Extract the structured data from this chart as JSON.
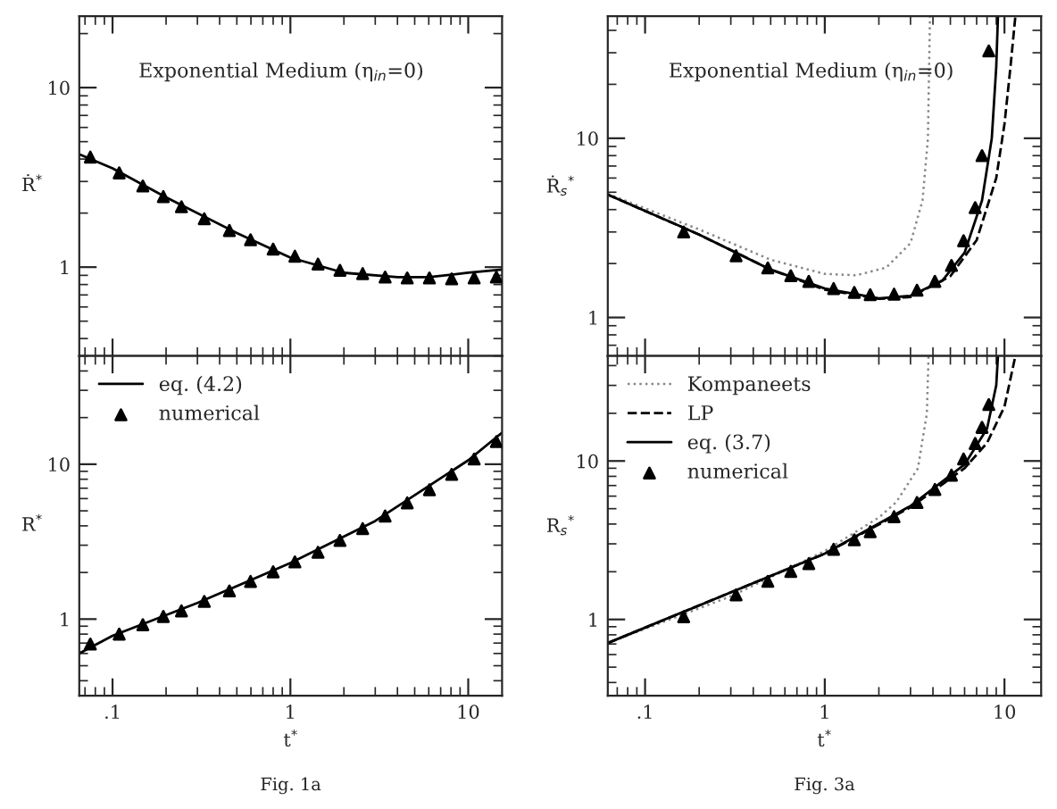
{
  "chart_data": [
    {
      "type": "line",
      "title": "Exponential Medium (η$_{in}$=0)",
      "ylabel": "Ṙ$^{*}$",
      "log": "xy",
      "xlim": [
        0.065,
        15.5
      ],
      "ylim": [
        0.32,
        25
      ],
      "yticks": [
        1,
        10
      ],
      "tick_labels": "y",
      "series": [
        {
          "color": "#000000",
          "line_style": "solid",
          "x": [
            0.065,
            0.1,
            0.2,
            0.5,
            1,
            2,
            4,
            6,
            10,
            15.5
          ],
          "values": [
            4.25,
            3.55,
            2.45,
            1.55,
            1.13,
            0.93,
            0.88,
            0.88,
            0.93,
            0.97
          ]
        },
        {
          "type": "scatter",
          "color": "#000000",
          "marker": "triangle",
          "x": [
            0.075,
            0.109,
            0.148,
            0.193,
            0.244,
            0.328,
            0.454,
            0.597,
            0.8,
            1.06,
            1.43,
            1.9,
            2.55,
            3.41,
            4.54,
            6.05,
            8.07,
            10.8,
            14.4
          ],
          "values": [
            4.1,
            3.35,
            2.83,
            2.47,
            2.17,
            1.86,
            1.6,
            1.42,
            1.26,
            1.15,
            1.04,
            0.96,
            0.92,
            0.88,
            0.87,
            0.87,
            0.86,
            0.87,
            0.88
          ]
        }
      ]
    },
    {
      "type": "line",
      "xlabel": "t$^{*}$",
      "ylabel": "R$^{*}$",
      "log": "xy",
      "xlim": [
        0.065,
        15.5
      ],
      "ylim": [
        0.32,
        50
      ],
      "xticks": [
        {
          "value": 0.1,
          "label": ".1"
        },
        1,
        10
      ],
      "yticks": [
        1,
        10
      ],
      "legend": "top left",
      "annotations": [
        "Fig. 1a"
      ],
      "series": [
        {
          "name": "eq. (4.2)",
          "color": "#000000",
          "line_style": "solid",
          "x": [
            0.065,
            0.1,
            0.3,
            1,
            3,
            10,
            15.5
          ],
          "values": [
            0.6,
            0.78,
            1.27,
            2.3,
            4.3,
            10.6,
            16
          ]
        },
        {
          "name": "numerical",
          "type": "scatter",
          "color": "#000000",
          "marker": "triangle",
          "x": [
            0.075,
            0.109,
            0.148,
            0.193,
            0.244,
            0.328,
            0.454,
            0.597,
            0.8,
            1.06,
            1.43,
            1.9,
            2.55,
            3.41,
            4.54,
            6.05,
            8.07,
            10.8,
            14.4
          ],
          "values": [
            0.69,
            0.8,
            0.92,
            1.04,
            1.13,
            1.3,
            1.52,
            1.75,
            2.02,
            2.34,
            2.7,
            3.22,
            3.84,
            4.63,
            5.63,
            6.84,
            8.6,
            10.8,
            14.0
          ]
        }
      ]
    },
    {
      "type": "line",
      "title": "Exponential Medium (η$_{in}$=0)",
      "ylabel": "Ṙ$_{s}$$^{*}$",
      "log": "xy",
      "xlim": [
        0.062,
        16
      ],
      "ylim": [
        0.61,
        48
      ],
      "yticks": [
        1,
        10
      ],
      "tick_labels": "y",
      "series": [
        {
          "color": "#888888",
          "line_style": "dotted",
          "x": [
            0.062,
            0.2,
            0.5,
            1,
            1.5,
            2.2,
            3,
            3.5,
            3.75,
            3.85
          ],
          "values": [
            4.9,
            3.1,
            2.1,
            1.75,
            1.72,
            1.9,
            2.6,
            4.5,
            10,
            48
          ]
        },
        {
          "color": "#000000",
          "line_style": "dashed",
          "x": [
            0.062,
            0.2,
            0.5,
            1,
            2,
            3,
            5,
            7,
            9,
            10,
            10.8,
            11.5
          ],
          "values": [
            4.85,
            2.9,
            1.85,
            1.43,
            1.27,
            1.3,
            1.7,
            2.7,
            6,
            12,
            25,
            48
          ]
        },
        {
          "color": "#000000",
          "line_style": "solid",
          "x": [
            0.062,
            0.2,
            0.5,
            1,
            2,
            3,
            4.5,
            6,
            7.5,
            8.5,
            9.0,
            9.2
          ],
          "values": [
            4.85,
            2.9,
            1.85,
            1.45,
            1.28,
            1.32,
            1.6,
            2.3,
            4.5,
            10,
            25,
            48
          ]
        },
        {
          "type": "scatter",
          "color": "#000000",
          "marker": "triangle",
          "x": [
            0.164,
            0.321,
            0.482,
            0.647,
            0.815,
            1.12,
            1.46,
            1.79,
            2.43,
            3.26,
            4.1,
            5.07,
            5.92,
            6.87,
            7.5,
            8.18
          ],
          "values": [
            3.0,
            2.21,
            1.89,
            1.71,
            1.59,
            1.45,
            1.38,
            1.34,
            1.35,
            1.42,
            1.59,
            1.95,
            2.68,
            4.1,
            8.0,
            30.7
          ]
        }
      ]
    },
    {
      "type": "line",
      "xlabel": "t$^{*}$",
      "ylabel": "R$_{s}$$^{*}$",
      "log": "xy",
      "xlim": [
        0.062,
        16
      ],
      "ylim": [
        0.33,
        46
      ],
      "xticks": [
        {
          "value": 0.1,
          "label": ".1"
        },
        1,
        10
      ],
      "yticks": [
        1,
        10
      ],
      "legend": "top left",
      "annotations": [
        "Fig. 3a"
      ],
      "series": [
        {
          "name": "Kompaneets",
          "color": "#888888",
          "line_style": "dotted",
          "x": [
            0.062,
            0.3,
            1,
            2,
            2.5,
            3.3,
            3.7,
            3.78
          ],
          "values": [
            0.71,
            1.4,
            2.7,
            4.4,
            5.5,
            9,
            20,
            46
          ]
        },
        {
          "name": "LP",
          "color": "#000000",
          "line_style": "dashed",
          "x": [
            0.062,
            1,
            3,
            6,
            8,
            10,
            11.5
          ],
          "values": [
            0.71,
            2.6,
            5.1,
            9,
            13,
            22,
            46
          ]
        },
        {
          "name": "eq. (3.7)",
          "color": "#000000",
          "line_style": "solid",
          "x": [
            0.062,
            1,
            3,
            6,
            8,
            9,
            9.2
          ],
          "values": [
            0.71,
            2.6,
            5.2,
            9.5,
            16,
            30,
            46
          ]
        },
        {
          "name": "numerical",
          "type": "scatter",
          "color": "#000000",
          "marker": "triangle",
          "x": [
            0.164,
            0.321,
            0.482,
            0.647,
            0.815,
            1.12,
            1.46,
            1.79,
            2.43,
            3.26,
            4.1,
            5.07,
            5.92,
            6.87,
            7.5,
            8.18
          ],
          "values": [
            1.04,
            1.43,
            1.74,
            2.01,
            2.25,
            2.77,
            3.18,
            3.58,
            4.45,
            5.47,
            6.61,
            8.13,
            10.3,
            12.9,
            16.3,
            22.7
          ]
        }
      ]
    }
  ]
}
